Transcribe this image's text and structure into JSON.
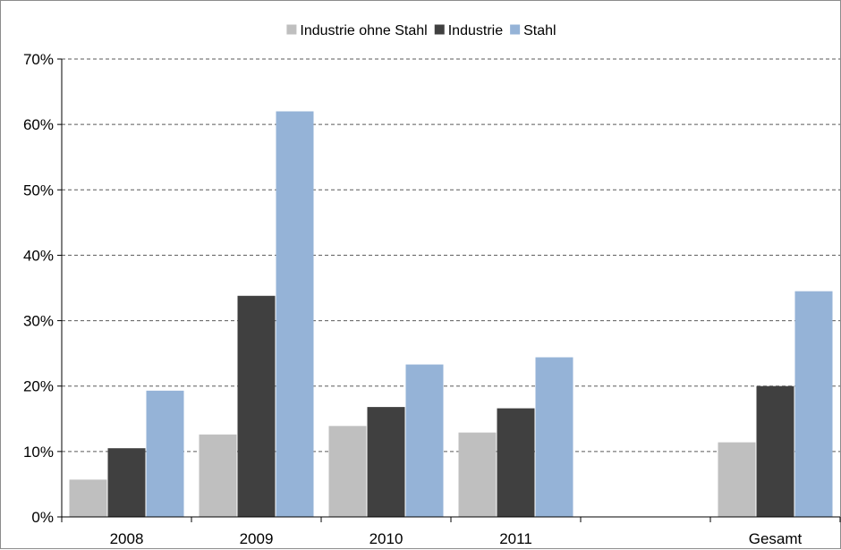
{
  "chart_data": {
    "type": "bar",
    "categories": [
      "2008",
      "2009",
      "2010",
      "2011",
      "",
      "Gesamt"
    ],
    "series": [
      {
        "name": "Industrie ohne Stahl",
        "color": "#bfbfbf",
        "values": [
          5.7,
          12.6,
          13.9,
          12.9,
          null,
          11.4
        ]
      },
      {
        "name": "Industrie",
        "color": "#404040",
        "values": [
          10.5,
          33.8,
          16.8,
          16.6,
          null,
          20.0
        ]
      },
      {
        "name": "Stahl",
        "color": "#95b3d7",
        "values": [
          19.3,
          62.0,
          23.3,
          24.4,
          null,
          34.5
        ]
      }
    ],
    "y_ticks": [
      "0%",
      "10%",
      "20%",
      "30%",
      "40%",
      "50%",
      "60%",
      "70%"
    ],
    "ylim": [
      0,
      70
    ],
    "y_unit": "%",
    "grid": "horizontal dashed",
    "legend_position": "top-center",
    "title": "",
    "xlabel": "",
    "ylabel": ""
  }
}
